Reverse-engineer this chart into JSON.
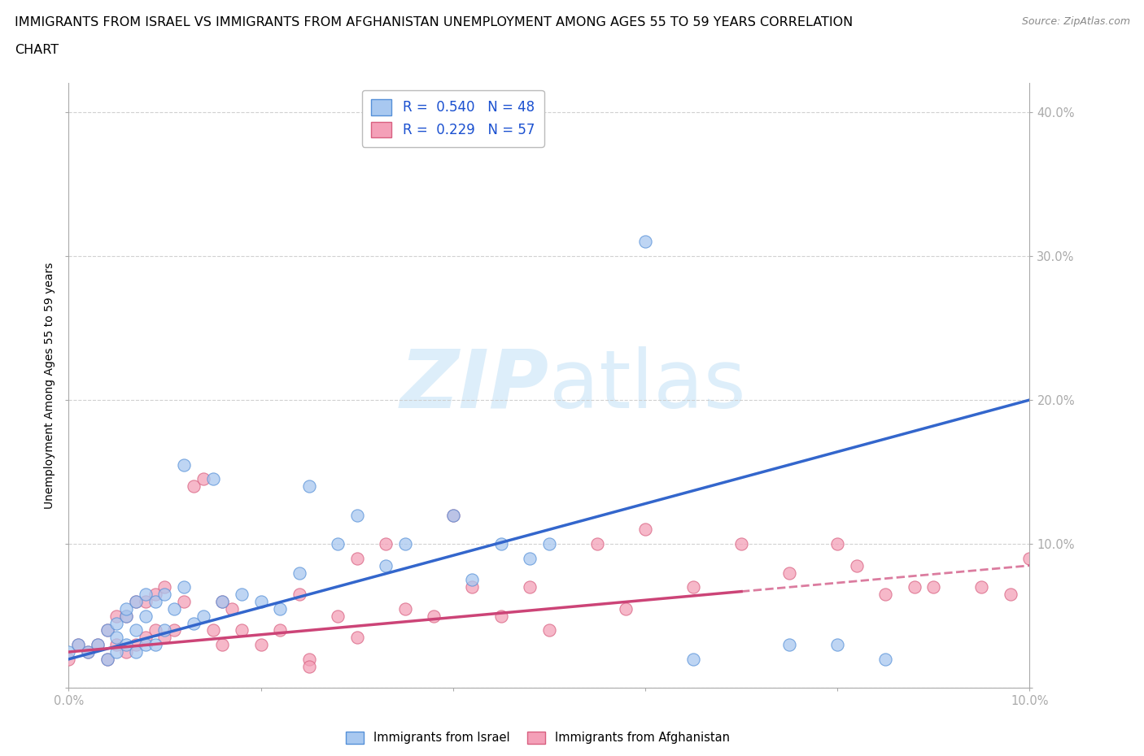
{
  "title_line1": "IMMIGRANTS FROM ISRAEL VS IMMIGRANTS FROM AFGHANISTAN UNEMPLOYMENT AMONG AGES 55 TO 59 YEARS CORRELATION",
  "title_line2": "CHART",
  "source_text": "Source: ZipAtlas.com",
  "ylabel": "Unemployment Among Ages 55 to 59 years",
  "x_min": 0.0,
  "x_max": 0.1,
  "y_min": 0.0,
  "y_max": 0.42,
  "x_ticks": [
    0.0,
    0.02,
    0.04,
    0.06,
    0.08,
    0.1
  ],
  "x_tick_labels": [
    "0.0%",
    "",
    "",
    "",
    "",
    "10.0%"
  ],
  "y_ticks": [
    0.0,
    0.1,
    0.2,
    0.3,
    0.4
  ],
  "y_tick_labels": [
    "",
    "10.0%",
    "20.0%",
    "30.0%",
    "40.0%"
  ],
  "israel_color": "#a8c8f0",
  "israel_color_dark": "#5590d8",
  "afghanistan_color": "#f4a0b8",
  "afghanistan_color_dark": "#d86080",
  "israel_R": 0.54,
  "israel_N": 48,
  "afghanistan_R": 0.229,
  "afghanistan_N": 57,
  "legend_text_color": "#1a50d0",
  "watermark_color": "#ddeefa",
  "israel_line_color": "#3366cc",
  "afghanistan_line_color": "#cc4477",
  "israel_scatter_x": [
    0.0,
    0.001,
    0.002,
    0.003,
    0.004,
    0.004,
    0.005,
    0.005,
    0.005,
    0.006,
    0.006,
    0.006,
    0.007,
    0.007,
    0.007,
    0.008,
    0.008,
    0.008,
    0.009,
    0.009,
    0.01,
    0.01,
    0.011,
    0.012,
    0.012,
    0.013,
    0.014,
    0.015,
    0.016,
    0.018,
    0.02,
    0.022,
    0.024,
    0.025,
    0.028,
    0.03,
    0.033,
    0.035,
    0.04,
    0.042,
    0.045,
    0.048,
    0.05,
    0.06,
    0.065,
    0.075,
    0.08,
    0.085
  ],
  "israel_scatter_y": [
    0.025,
    0.03,
    0.025,
    0.03,
    0.04,
    0.02,
    0.025,
    0.035,
    0.045,
    0.03,
    0.05,
    0.055,
    0.025,
    0.04,
    0.06,
    0.03,
    0.05,
    0.065,
    0.03,
    0.06,
    0.04,
    0.065,
    0.055,
    0.07,
    0.155,
    0.045,
    0.05,
    0.145,
    0.06,
    0.065,
    0.06,
    0.055,
    0.08,
    0.14,
    0.1,
    0.12,
    0.085,
    0.1,
    0.12,
    0.075,
    0.1,
    0.09,
    0.1,
    0.31,
    0.02,
    0.03,
    0.03,
    0.02
  ],
  "afghanistan_scatter_x": [
    0.0,
    0.001,
    0.002,
    0.003,
    0.004,
    0.004,
    0.005,
    0.005,
    0.006,
    0.006,
    0.007,
    0.007,
    0.008,
    0.008,
    0.009,
    0.009,
    0.01,
    0.01,
    0.011,
    0.012,
    0.013,
    0.014,
    0.015,
    0.016,
    0.016,
    0.017,
    0.018,
    0.02,
    0.022,
    0.024,
    0.025,
    0.028,
    0.03,
    0.033,
    0.035,
    0.038,
    0.04,
    0.042,
    0.045,
    0.048,
    0.05,
    0.055,
    0.058,
    0.06,
    0.065,
    0.07,
    0.075,
    0.08,
    0.082,
    0.085,
    0.088,
    0.09,
    0.095,
    0.098,
    0.1,
    0.025,
    0.03
  ],
  "afghanistan_scatter_y": [
    0.02,
    0.03,
    0.025,
    0.03,
    0.02,
    0.04,
    0.03,
    0.05,
    0.025,
    0.05,
    0.03,
    0.06,
    0.035,
    0.06,
    0.04,
    0.065,
    0.035,
    0.07,
    0.04,
    0.06,
    0.14,
    0.145,
    0.04,
    0.03,
    0.06,
    0.055,
    0.04,
    0.03,
    0.04,
    0.065,
    0.02,
    0.05,
    0.09,
    0.1,
    0.055,
    0.05,
    0.12,
    0.07,
    0.05,
    0.07,
    0.04,
    0.1,
    0.055,
    0.11,
    0.07,
    0.1,
    0.08,
    0.1,
    0.085,
    0.065,
    0.07,
    0.07,
    0.07,
    0.065,
    0.09,
    0.015,
    0.035
  ],
  "background_color": "#ffffff",
  "grid_color": "#cccccc",
  "axis_color": "#aaaaaa"
}
